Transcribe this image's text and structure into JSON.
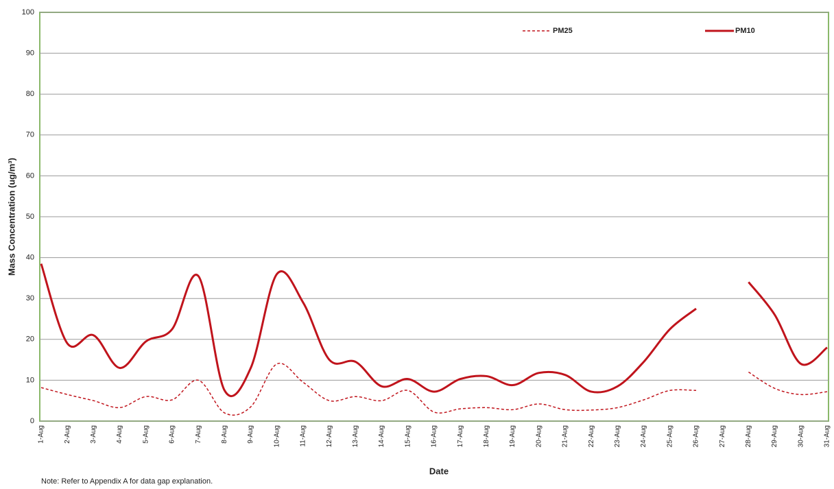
{
  "chart_data": {
    "type": "line",
    "xlabel": "Date",
    "ylabel": "Mass Concentration (ug/m³)",
    "note": "Note: Refer to Appendix A for data gap explanation.",
    "categories": [
      "1-Aug",
      "2-Aug",
      "3-Aug",
      "4-Aug",
      "5-Aug",
      "6-Aug",
      "7-Aug",
      "8-Aug",
      "9-Aug",
      "10-Aug",
      "11-Aug",
      "12-Aug",
      "13-Aug",
      "14-Aug",
      "15-Aug",
      "16-Aug",
      "17-Aug",
      "18-Aug",
      "19-Aug",
      "20-Aug",
      "21-Aug",
      "22-Aug",
      "23-Aug",
      "24-Aug",
      "25-Aug",
      "26-Aug",
      "27-Aug",
      "28-Aug",
      "29-Aug",
      "30-Aug",
      "31-Aug"
    ],
    "series": [
      {
        "name": "PM25",
        "color": "#c0141c",
        "dash": true,
        "values": [
          8.2,
          6.5,
          5,
          3.3,
          6,
          5.2,
          10,
          2,
          3.5,
          14,
          9.5,
          5,
          6,
          5,
          7.5,
          2.2,
          3,
          3.3,
          2.8,
          4.2,
          2.8,
          2.7,
          3.3,
          5.2,
          7.5,
          7.5,
          null,
          12,
          8,
          6.5,
          7.2
        ]
      },
      {
        "name": "PM10",
        "color": "#c0141c",
        "dash": false,
        "values": [
          38.5,
          19,
          21,
          13,
          19.5,
          22.5,
          35.5,
          7.5,
          13,
          36,
          29,
          15,
          14.5,
          8.5,
          10.3,
          7.2,
          10.3,
          11,
          8.8,
          11.8,
          11.3,
          7.2,
          8.5,
          14.5,
          22.5,
          27.5,
          null,
          34,
          26,
          14,
          18
        ]
      }
    ],
    "ylim": [
      0,
      100
    ],
    "yticks": [
      0,
      10,
      20,
      30,
      40,
      50,
      60,
      70,
      80,
      90,
      100
    ],
    "grid": true,
    "legend": "top"
  }
}
